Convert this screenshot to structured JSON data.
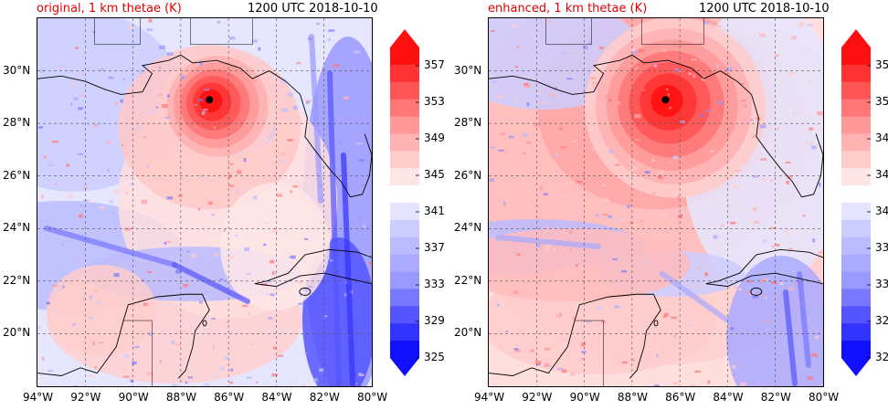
{
  "panels": [
    {
      "id": "original",
      "title": "original, 1 km thetae (K)",
      "time": "1200 UTC 2018-10-10"
    },
    {
      "id": "enhanced",
      "title": "enhanced, 1 km thetae (K)",
      "time": "1200 UTC 2018-10-10"
    }
  ],
  "map": {
    "lat_labels": [
      "30°N",
      "28°N",
      "26°N",
      "24°N",
      "22°N",
      "20°N"
    ],
    "lon_labels": [
      "94°W",
      "92°W",
      "90°W",
      "88°W",
      "86°W",
      "84°W",
      "82°W",
      "80°W"
    ],
    "lon_range": [
      -94,
      -80
    ],
    "lat_range": [
      18,
      32
    ]
  },
  "storm_center": {
    "original": {
      "lon": -86.8,
      "lat": 28.9
    },
    "enhanced": {
      "lon": -86.6,
      "lat": 28.9
    }
  },
  "colorbar": {
    "levels": [
      325,
      327,
      329,
      331,
      333,
      335,
      337,
      339,
      341,
      343,
      345,
      347,
      349,
      351,
      353,
      355,
      357,
      359
    ],
    "tick_labels": [
      "357",
      "353",
      "349",
      "345",
      "341",
      "337",
      "333",
      "329",
      "325"
    ],
    "colors": [
      "#1010ff",
      "#3333ff",
      "#5555ff",
      "#7777ff",
      "#9999ff",
      "#aaaaff",
      "#bbbbff",
      "#ccccff",
      "#e4e4ff",
      "#ffffff",
      "#ffe6e6",
      "#ffcccc",
      "#ffb3b3",
      "#ff9999",
      "#ff7777",
      "#ff5555",
      "#ff3333",
      "#ff1010"
    ],
    "extend": "both"
  },
  "colors": {
    "cold": "#1010ff",
    "warm": "#ff1010",
    "title": "#e00000"
  }
}
